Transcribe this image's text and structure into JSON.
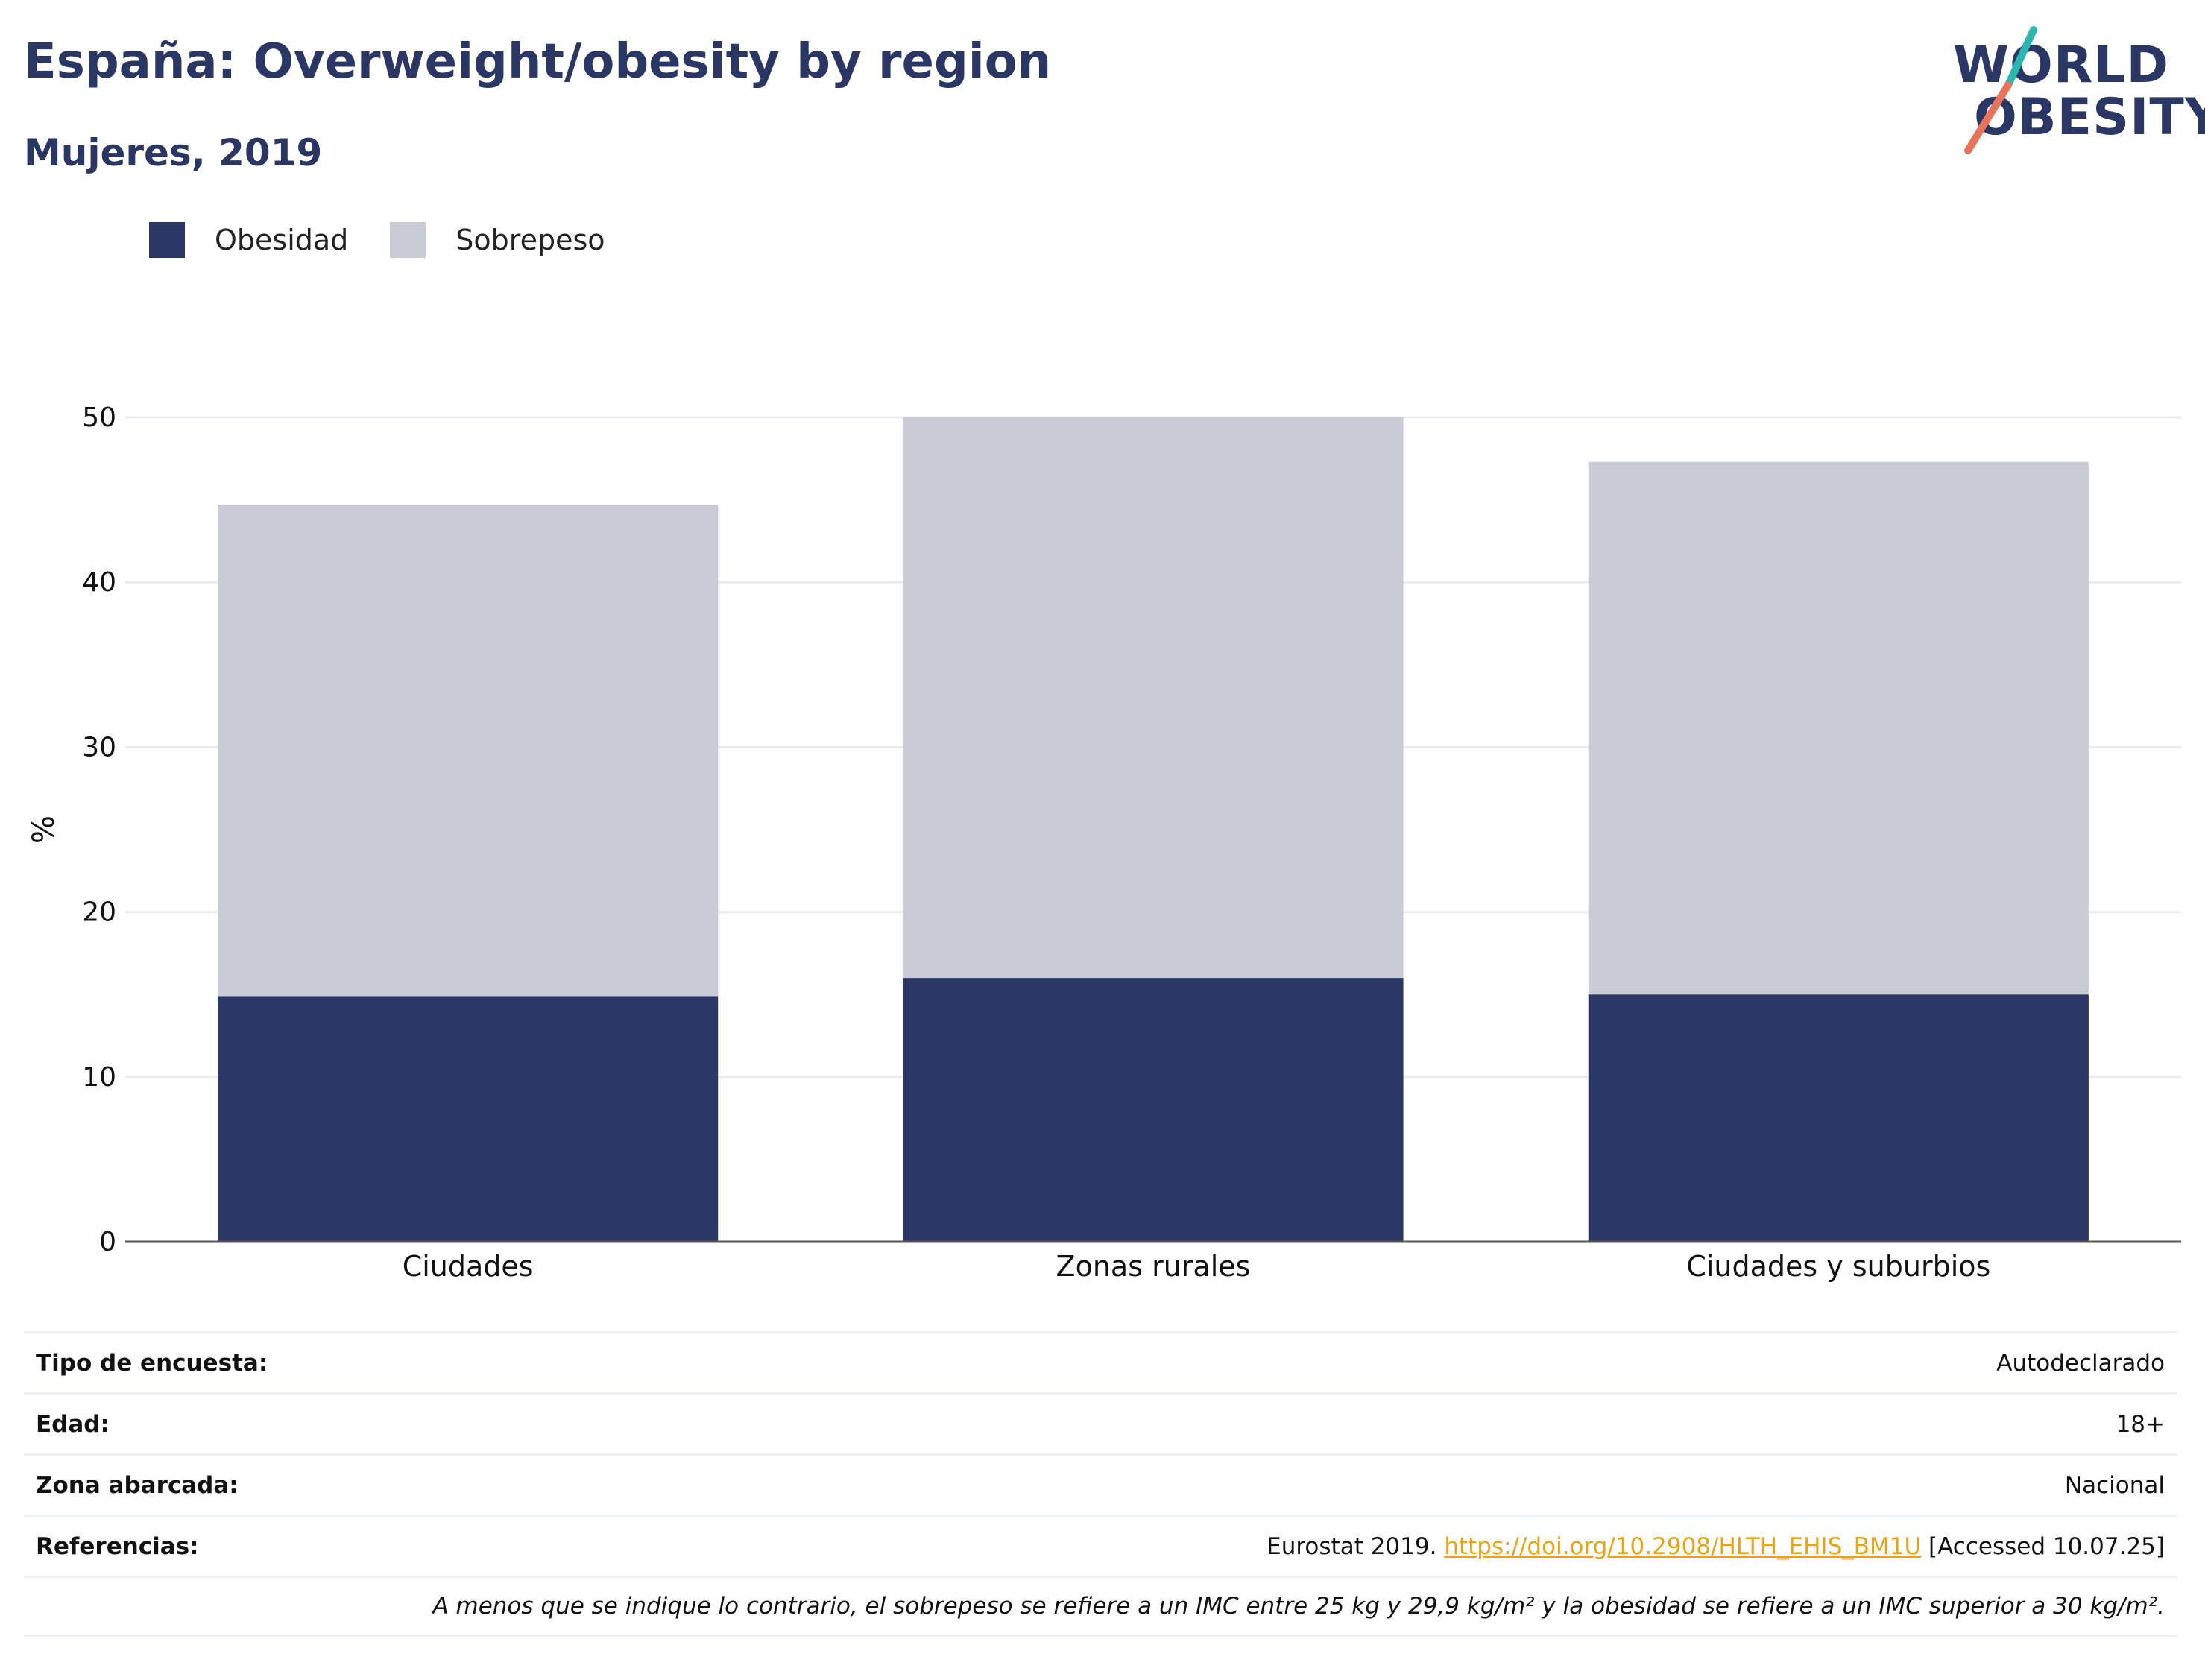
{
  "title": "España: Overweight/obesity by region",
  "subtitle": "Mujeres, 2019",
  "logo": {
    "line1": "WORLD",
    "line2": "OBESITY",
    "accent_teal": "#2bb6b0",
    "accent_coral": "#e8735a"
  },
  "colors": {
    "obesidad": "#2a3764",
    "sobrepeso": "#c9cbd6",
    "grid": "#e9ebf2",
    "axis": "#555555"
  },
  "legend": [
    {
      "label": "Obesidad",
      "color": "#2a3764"
    },
    {
      "label": "Sobrepeso",
      "color": "#c9cbd6"
    }
  ],
  "chart_data": {
    "type": "bar",
    "stacked": true,
    "categories": [
      "Ciudades",
      "Zonas rurales",
      "Ciudades y suburbios"
    ],
    "series": [
      {
        "name": "Obesidad",
        "values": [
          14.9,
          16.0,
          15.0
        ]
      },
      {
        "name": "Sobrepeso",
        "values": [
          29.8,
          34.0,
          32.3
        ]
      }
    ],
    "ylabel": "%",
    "ylim": [
      0,
      50
    ],
    "yticks": [
      0,
      10,
      20,
      30,
      40,
      50
    ],
    "grid": true,
    "legend_position": "top-left"
  },
  "info": [
    {
      "key": "Tipo de encuesta:",
      "value": "Autodeclarado"
    },
    {
      "key": "Edad:",
      "value": "18+"
    },
    {
      "key": "Zona abarcada:",
      "value": "Nacional"
    }
  ],
  "references": {
    "key": "Referencias:",
    "prefix": "Eurostat 2019.",
    "link": "https://doi.org/10.2908/HLTH_EHIS_BM1U",
    "suffix": "[Accessed 10.07.25]"
  },
  "note": "A menos que se indique lo contrario, el sobrepeso se refiere a un IMC entre 25 kg y 29,9 kg/m² y la obesidad se refiere a un IMC superior a 30 kg/m²."
}
